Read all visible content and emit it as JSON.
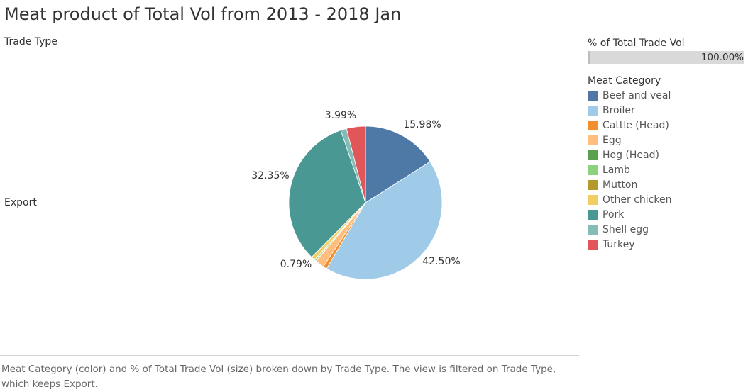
{
  "page": {
    "title": "Meat product of Total Vol from 2013 - 2018 Jan",
    "column_header": "Trade Type",
    "row_label": "Export",
    "caption": "Meat Category (color) and % of Total Trade Vol (size) broken down by Trade Type.  The view is filtered on Trade Type, which keeps Export."
  },
  "size_legend": {
    "title": "% of Total Trade Vol",
    "value_label": "100.00%",
    "value_fraction": 1.0
  },
  "color_legend": {
    "title": "Meat Category",
    "items": [
      {
        "label": "Beef and veal",
        "color": "#4e79a7"
      },
      {
        "label": "Broiler",
        "color": "#a0cbe8"
      },
      {
        "label": "Cattle (Head)",
        "color": "#f28e2b"
      },
      {
        "label": "Egg",
        "color": "#ffbe7d"
      },
      {
        "label": "Hog (Head)",
        "color": "#59a14f"
      },
      {
        "label": "Lamb",
        "color": "#8cd17d"
      },
      {
        "label": "Mutton",
        "color": "#b6992d"
      },
      {
        "label": "Other chicken",
        "color": "#f1ce63"
      },
      {
        "label": "Pork",
        "color": "#499894"
      },
      {
        "label": "Shell egg",
        "color": "#86bcb6"
      },
      {
        "label": "Turkey",
        "color": "#e15759"
      }
    ]
  },
  "chart_data": {
    "type": "pie",
    "start_angle": "12 o'clock, clockwise",
    "slices": [
      {
        "category": "Beef and veal",
        "value": 15.98,
        "label": "15.98%",
        "color": "#4e79a7"
      },
      {
        "category": "Broiler",
        "value": 42.5,
        "label": "42.50%",
        "color": "#a0cbe8"
      },
      {
        "category": "Cattle (Head)",
        "value": 0.79,
        "label": "0.79%",
        "color": "#f28e2b"
      },
      {
        "category": "Egg",
        "value": 1.9,
        "label": "",
        "color": "#ffbe7d"
      },
      {
        "category": "Hog (Head)",
        "value": 0.05,
        "label": "",
        "color": "#59a14f"
      },
      {
        "category": "Lamb",
        "value": 0.3,
        "label": "",
        "color": "#8cd17d"
      },
      {
        "category": "Mutton",
        "value": 0.05,
        "label": "",
        "color": "#b6992d"
      },
      {
        "category": "Other chicken",
        "value": 0.84,
        "label": "",
        "color": "#f1ce63"
      },
      {
        "category": "Pork",
        "value": 32.35,
        "label": "32.35%",
        "color": "#499894"
      },
      {
        "category": "Shell egg",
        "value": 1.25,
        "label": "",
        "color": "#86bcb6"
      },
      {
        "category": "Turkey",
        "value": 3.99,
        "label": "3.99%",
        "color": "#e15759"
      }
    ]
  }
}
